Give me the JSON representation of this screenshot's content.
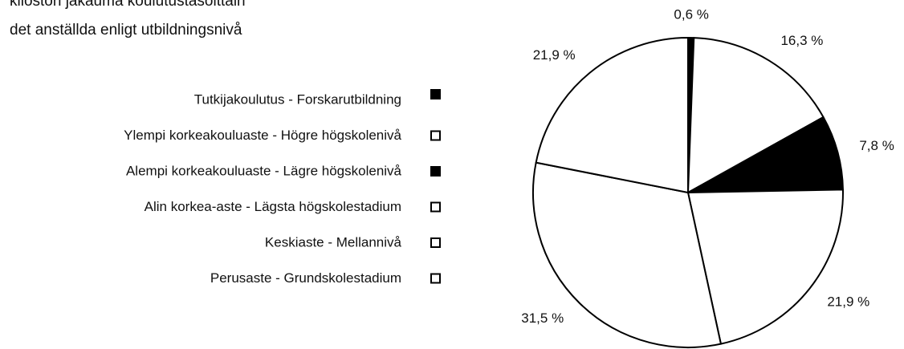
{
  "chart_data": {
    "type": "pie",
    "title": "kiloston jakauma koulutustasoittain",
    "subtitle": "det anställda enligt utbildningsnivå",
    "categories": [
      "Tutkijakoulutus - Forskarutbildning",
      "Ylempi korkeakouluaste - Högre högskolenivå",
      "Alempi korkeakouluaste - Lägre högskolenivå",
      "Alin korkea-aste - Lägsta högskolestadium",
      "Keskiaste - Mellannivå",
      "Perusaste - Grundskolestadium"
    ],
    "values": [
      0.6,
      16.3,
      7.8,
      21.9,
      31.5,
      21.9
    ],
    "value_labels": [
      "0,6 %",
      "16,3 %",
      "7,8 %",
      "21,9 %",
      "31,5 %",
      "21,9 %"
    ],
    "colors": [
      "#000000",
      "#ffffff",
      "#000000",
      "#ffffff",
      "#ffffff",
      "#ffffff"
    ],
    "legend": "left"
  }
}
